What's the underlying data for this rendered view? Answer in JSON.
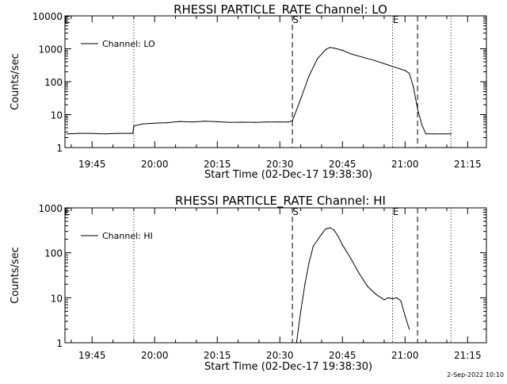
{
  "footer_timestamp": "2-Sep-2022 10:10",
  "chart_data": [
    {
      "type": "line",
      "title": "RHESSI PARTICLE_RATE Channel: LO",
      "xlabel": "Start Time (02-Dec-17 19:38:30)",
      "ylabel": "Counts/sec",
      "yscale": "log",
      "ylim": [
        1,
        10000
      ],
      "xlim": [
        "19:38:30",
        "21:19:30"
      ],
      "x_ticks": [
        "19:45",
        "20:00",
        "20:15",
        "20:30",
        "20:45",
        "21:00",
        "21:15"
      ],
      "y_ticks": [
        "1",
        "10",
        "100",
        "1000",
        "10000"
      ],
      "legend": {
        "position": "top-left",
        "entries": [
          "Channel: LO"
        ]
      },
      "vlines": [
        {
          "time": "19:55:00",
          "style": "dotted"
        },
        {
          "time": "20:33:00",
          "style": "dashed",
          "label": "S"
        },
        {
          "time": "20:57:00",
          "style": "dotted",
          "label": "E"
        },
        {
          "time": "21:03:00",
          "style": "dashed"
        },
        {
          "time": "21:11:00",
          "style": "dotted"
        }
      ],
      "edge_label": "E",
      "series": [
        {
          "name": "Channel: LO",
          "x": [
            "19:39",
            "19:42",
            "19:45",
            "19:48",
            "19:51",
            "19:54",
            "19:54:45",
            "19:55",
            "19:57",
            "20:00",
            "20:03",
            "20:06",
            "20:09",
            "20:12",
            "20:15",
            "20:18",
            "20:21",
            "20:24",
            "20:27",
            "20:30",
            "20:32",
            "20:33",
            "20:35",
            "20:37",
            "20:39",
            "20:41",
            "20:42",
            "20:43",
            "20:45",
            "20:47",
            "20:50",
            "20:53",
            "20:56",
            "20:59",
            "21:00",
            "21:01",
            "21:02",
            "21:03",
            "21:04",
            "21:05",
            "21:07",
            "21:09",
            "21:11"
          ],
          "y": [
            2.6,
            2.7,
            2.7,
            2.6,
            2.7,
            2.7,
            2.7,
            4.5,
            5.2,
            5.5,
            5.7,
            6.2,
            6.0,
            6.3,
            6.1,
            5.8,
            5.9,
            5.8,
            6.0,
            6.0,
            6.0,
            6.5,
            30,
            150,
            500,
            950,
            1100,
            1050,
            900,
            700,
            550,
            430,
            320,
            240,
            220,
            180,
            70,
            15,
            5,
            2.6,
            2.6,
            2.6,
            2.6
          ]
        }
      ]
    },
    {
      "type": "line",
      "title": "RHESSI PARTICLE_RATE Channel: HI",
      "xlabel": "Start Time (02-Dec-17 19:38:30)",
      "ylabel": "Counts/sec",
      "yscale": "log",
      "ylim": [
        1,
        1000
      ],
      "xlim": [
        "19:38:30",
        "21:19:30"
      ],
      "x_ticks": [
        "19:45",
        "20:00",
        "20:15",
        "20:30",
        "20:45",
        "21:00",
        "21:15"
      ],
      "y_ticks": [
        "1",
        "10",
        "100",
        "1000"
      ],
      "legend": {
        "position": "top-left",
        "entries": [
          "Channel: HI"
        ]
      },
      "vlines": [
        {
          "time": "19:55:00",
          "style": "dotted"
        },
        {
          "time": "20:33:00",
          "style": "dashed",
          "label": "S"
        },
        {
          "time": "20:57:00",
          "style": "dotted",
          "label": "E"
        },
        {
          "time": "21:03:00",
          "style": "dashed"
        },
        {
          "time": "21:11:00",
          "style": "dotted"
        }
      ],
      "edge_label": "E",
      "series": [
        {
          "name": "Channel: HI",
          "x": [
            "20:34",
            "20:35",
            "20:36",
            "20:37",
            "20:38",
            "20:40",
            "20:41",
            "20:42",
            "20:43",
            "20:44",
            "20:45",
            "20:47",
            "20:49",
            "20:51",
            "20:53",
            "20:55",
            "20:56",
            "20:57",
            "20:58",
            "20:59",
            "21:00",
            "21:01"
          ],
          "y": [
            1.0,
            5,
            20,
            60,
            140,
            260,
            340,
            360,
            320,
            230,
            150,
            75,
            35,
            18,
            12,
            9,
            10,
            9.5,
            10,
            8.5,
            4,
            2
          ]
        }
      ]
    }
  ]
}
